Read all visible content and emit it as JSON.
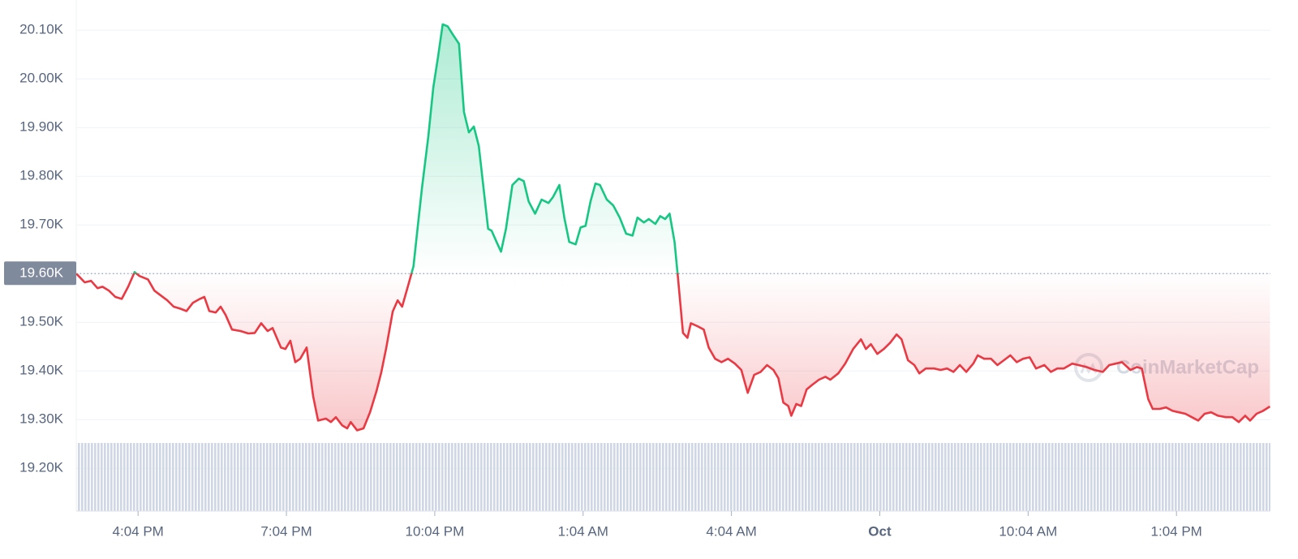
{
  "chart_data": {
    "type": "line",
    "x": [
      -1.25,
      -1.08,
      -0.95,
      -0.82,
      -0.72,
      -0.59,
      -0.46,
      -0.33,
      -0.2,
      -0.07,
      0.03,
      0.2,
      0.33,
      0.46,
      0.59,
      0.72,
      0.85,
      0.98,
      1.11,
      1.25,
      1.34,
      1.44,
      1.57,
      1.67,
      1.77,
      1.9,
      2.07,
      2.23,
      2.36,
      2.49,
      2.62,
      2.72,
      2.89,
      2.98,
      3.08,
      3.18,
      3.28,
      3.41,
      3.54,
      3.64,
      3.8,
      3.9,
      4.0,
      4.13,
      4.23,
      4.3,
      4.43,
      4.56,
      4.69,
      4.82,
      4.92,
      5.02,
      5.15,
      5.25,
      5.34,
      5.48,
      5.57,
      5.64,
      5.74,
      5.87,
      5.97,
      6.07,
      6.16,
      6.26,
      6.36,
      6.49,
      6.59,
      6.69,
      6.79,
      6.89,
      6.98,
      7.08,
      7.15,
      7.25,
      7.34,
      7.44,
      7.57,
      7.7,
      7.8,
      7.9,
      8.03,
      8.16,
      8.3,
      8.39,
      8.52,
      8.62,
      8.72,
      8.85,
      8.95,
      9.05,
      9.15,
      9.25,
      9.34,
      9.48,
      9.61,
      9.74,
      9.87,
      10.0,
      10.1,
      10.23,
      10.33,
      10.46,
      10.56,
      10.66,
      10.75,
      10.85,
      10.92,
      11.02,
      11.11,
      11.18,
      11.31,
      11.44,
      11.54,
      11.67,
      11.8,
      11.93,
      12.07,
      12.2,
      12.33,
      12.46,
      12.59,
      12.72,
      12.85,
      12.95,
      13.05,
      13.15,
      13.21,
      13.31,
      13.41,
      13.52,
      13.64,
      13.77,
      13.9,
      14.0,
      14.16,
      14.3,
      14.46,
      14.62,
      14.72,
      14.82,
      14.95,
      15.08,
      15.21,
      15.34,
      15.44,
      15.57,
      15.7,
      15.8,
      15.93,
      16.1,
      16.23,
      16.36,
      16.49,
      16.62,
      16.75,
      16.89,
      16.98,
      17.11,
      17.25,
      17.38,
      17.51,
      17.64,
      17.77,
      17.9,
      18.03,
      18.16,
      18.33,
      18.46,
      18.59,
      18.72,
      18.89,
      19.02,
      19.18,
      19.34,
      19.51,
      19.64,
      19.77,
      19.9,
      20.07,
      20.2,
      20.3,
      20.43,
      20.52,
      20.66,
      20.79,
      20.92,
      21.05,
      21.18,
      21.31,
      21.44,
      21.57,
      21.7,
      21.84,
      22.0,
      22.13,
      22.26,
      22.39,
      22.49,
      22.62,
      22.75,
      22.89
    ],
    "values": [
      19600,
      19582,
      19585,
      19570,
      19573,
      19565,
      19552,
      19548,
      19573,
      19603,
      19595,
      19588,
      19565,
      19555,
      19545,
      19532,
      19528,
      19523,
      19540,
      19548,
      19552,
      19523,
      19520,
      19532,
      19515,
      19485,
      19482,
      19477,
      19478,
      19498,
      19482,
      19488,
      19448,
      19445,
      19462,
      19418,
      19425,
      19448,
      19348,
      19298,
      19302,
      19295,
      19305,
      19288,
      19282,
      19295,
      19278,
      19282,
      19315,
      19358,
      19398,
      19448,
      19522,
      19545,
      19532,
      19582,
      19615,
      19682,
      19775,
      19882,
      19982,
      20048,
      20112,
      20108,
      20092,
      20072,
      19932,
      19890,
      19902,
      19862,
      19782,
      19692,
      19688,
      19665,
      19645,
      19692,
      19782,
      19795,
      19790,
      19748,
      19723,
      19752,
      19745,
      19757,
      19782,
      19715,
      19665,
      19660,
      19695,
      19698,
      19748,
      19785,
      19782,
      19752,
      19740,
      19715,
      19682,
      19678,
      19715,
      19705,
      19712,
      19702,
      19718,
      19712,
      19723,
      19665,
      19590,
      19478,
      19468,
      19498,
      19492,
      19485,
      19448,
      19425,
      19418,
      19425,
      19415,
      19402,
      19355,
      19392,
      19398,
      19412,
      19402,
      19385,
      19335,
      19328,
      19308,
      19332,
      19328,
      19362,
      19372,
      19382,
      19388,
      19382,
      19395,
      19415,
      19445,
      19465,
      19445,
      19455,
      19435,
      19445,
      19458,
      19475,
      19465,
      19422,
      19412,
      19395,
      19405,
      19405,
      19402,
      19405,
      19398,
      19412,
      19398,
      19415,
      19432,
      19425,
      19425,
      19412,
      19422,
      19432,
      19418,
      19425,
      19428,
      19405,
      19412,
      19398,
      19405,
      19405,
      19415,
      19412,
      19408,
      19402,
      19398,
      19412,
      19415,
      19418,
      19402,
      19408,
      19405,
      19342,
      19322,
      19322,
      19325,
      19318,
      19315,
      19312,
      19305,
      19298,
      19312,
      19315,
      19308,
      19305,
      19305,
      19295,
      19308,
      19298,
      19312,
      19318,
      19327
    ],
    "baseline": 19600,
    "up_color": "#16c784",
    "down_color": "#ea3943",
    "grid": true,
    "xlim": [
      -1.25,
      22.9
    ],
    "xticks": [
      {
        "value": 0,
        "label": "4:04 PM"
      },
      {
        "value": 3,
        "label": "7:04 PM"
      },
      {
        "value": 6,
        "label": "10:04 PM"
      },
      {
        "value": 9,
        "label": "1:04 AM"
      },
      {
        "value": 12,
        "label": "4:04 AM"
      },
      {
        "value": 15,
        "label": "Oct",
        "bold": true
      },
      {
        "value": 18,
        "label": "10:04 AM"
      },
      {
        "value": 21,
        "label": "1:04 PM"
      }
    ],
    "ylim": [
      19112,
      20162
    ],
    "yticks": [
      {
        "value": 19200,
        "label": "19.20K"
      },
      {
        "value": 19300,
        "label": "19.30K"
      },
      {
        "value": 19400,
        "label": "19.40K"
      },
      {
        "value": 19500,
        "label": "19.50K"
      },
      {
        "value": 19600,
        "label": "19.60K"
      },
      {
        "value": 19700,
        "label": "19.70K"
      },
      {
        "value": 19800,
        "label": "19.80K"
      },
      {
        "value": 19900,
        "label": "19.90K"
      },
      {
        "value": 20000,
        "label": "20.00K"
      },
      {
        "value": 20100,
        "label": "20.10K"
      }
    ],
    "watermark": "CoinMarketCap"
  }
}
